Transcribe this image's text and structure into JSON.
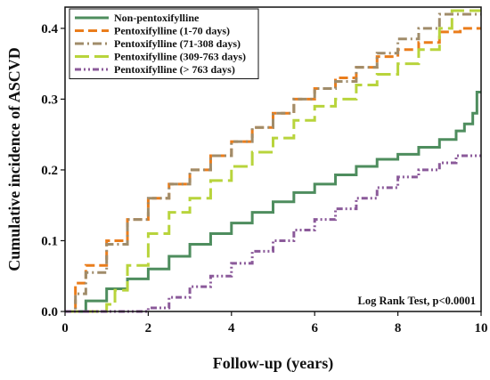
{
  "chart_data": {
    "type": "line",
    "xlabel": "Follow-up (years)",
    "ylabel": "Cumulative incidence of ASCVD",
    "xlim": [
      0,
      10
    ],
    "ylim": [
      0,
      0.43
    ],
    "xticks": [
      0,
      2,
      4,
      6,
      8,
      10
    ],
    "yticks": [
      0.0,
      0.1,
      0.2,
      0.3,
      0.4
    ],
    "ytick_labels": [
      "0.0",
      "0.1",
      "0.2",
      "0.3",
      "0.4"
    ],
    "grid": false,
    "legend_position": "top-left",
    "annotation": "Log Rank Test, p<0.0001",
    "series": [
      {
        "name": "Non-pentoxifylline",
        "color": "#4e8d5e",
        "dash": "solid",
        "x": [
          0,
          0.5,
          1,
          1.5,
          2,
          2.5,
          3,
          3.5,
          4,
          4.5,
          5,
          5.5,
          6,
          6.5,
          7,
          7.5,
          8,
          8.5,
          9,
          9.4,
          9.6,
          9.8,
          9.9,
          10
        ],
        "values": [
          0,
          0.015,
          0.032,
          0.046,
          0.06,
          0.078,
          0.095,
          0.11,
          0.125,
          0.14,
          0.155,
          0.168,
          0.18,
          0.193,
          0.205,
          0.215,
          0.222,
          0.232,
          0.243,
          0.255,
          0.265,
          0.28,
          0.31,
          0.31
        ]
      },
      {
        "name": "Pentoxifylline (1-70 days)",
        "color": "#ea7d1c",
        "dash": "dash",
        "x": [
          0,
          0.25,
          0.5,
          1,
          1.5,
          2,
          2.5,
          3,
          3.5,
          4,
          4.5,
          5,
          5.5,
          6,
          6.5,
          7,
          7.5,
          8,
          8.5,
          9,
          9.5,
          10
        ],
        "values": [
          0,
          0.04,
          0.065,
          0.1,
          0.13,
          0.16,
          0.18,
          0.2,
          0.22,
          0.24,
          0.26,
          0.28,
          0.3,
          0.315,
          0.33,
          0.345,
          0.36,
          0.37,
          0.38,
          0.395,
          0.4,
          0.4
        ]
      },
      {
        "name": "Pentoxifylline (71-308 days)",
        "color": "#a08c6a",
        "dash": "dashdot",
        "x": [
          0,
          0.25,
          0.5,
          1,
          1.5,
          2,
          2.5,
          3,
          3.5,
          4,
          4.5,
          5,
          5.5,
          6,
          6.5,
          7,
          7.5,
          8,
          8.5,
          9,
          9.5,
          10
        ],
        "values": [
          0,
          0.025,
          0.055,
          0.095,
          0.13,
          0.16,
          0.18,
          0.2,
          0.22,
          0.24,
          0.26,
          0.28,
          0.3,
          0.315,
          0.325,
          0.345,
          0.365,
          0.385,
          0.4,
          0.42,
          0.42,
          0.42
        ]
      },
      {
        "name": "Pentoxifylline (309-763 days)",
        "color": "#b8d43c",
        "dash": "longdash",
        "x": [
          0,
          0.8,
          1,
          1.2,
          1.5,
          2,
          2.5,
          3,
          3.5,
          4,
          4.5,
          5,
          5.5,
          6,
          6.5,
          7,
          7.5,
          8,
          8.5,
          9,
          9.3,
          9.6,
          10
        ],
        "values": [
          0,
          0,
          0.01,
          0.03,
          0.065,
          0.11,
          0.14,
          0.16,
          0.185,
          0.205,
          0.225,
          0.245,
          0.27,
          0.29,
          0.3,
          0.32,
          0.335,
          0.35,
          0.37,
          0.4,
          0.425,
          0.425,
          0.425
        ]
      },
      {
        "name": "Pentoxifylline (> 763 days)",
        "color": "#8b5a9a",
        "dash": "dashdotdot",
        "x": [
          0,
          1.8,
          2,
          2.5,
          3,
          3.5,
          4,
          4.5,
          5,
          5.5,
          6,
          6.5,
          7,
          7.5,
          8,
          8.5,
          9,
          9.4,
          9.6,
          10
        ],
        "values": [
          0,
          0,
          0.005,
          0.02,
          0.035,
          0.05,
          0.068,
          0.085,
          0.1,
          0.115,
          0.13,
          0.145,
          0.16,
          0.175,
          0.19,
          0.2,
          0.21,
          0.22,
          0.22,
          0.22
        ]
      }
    ]
  }
}
